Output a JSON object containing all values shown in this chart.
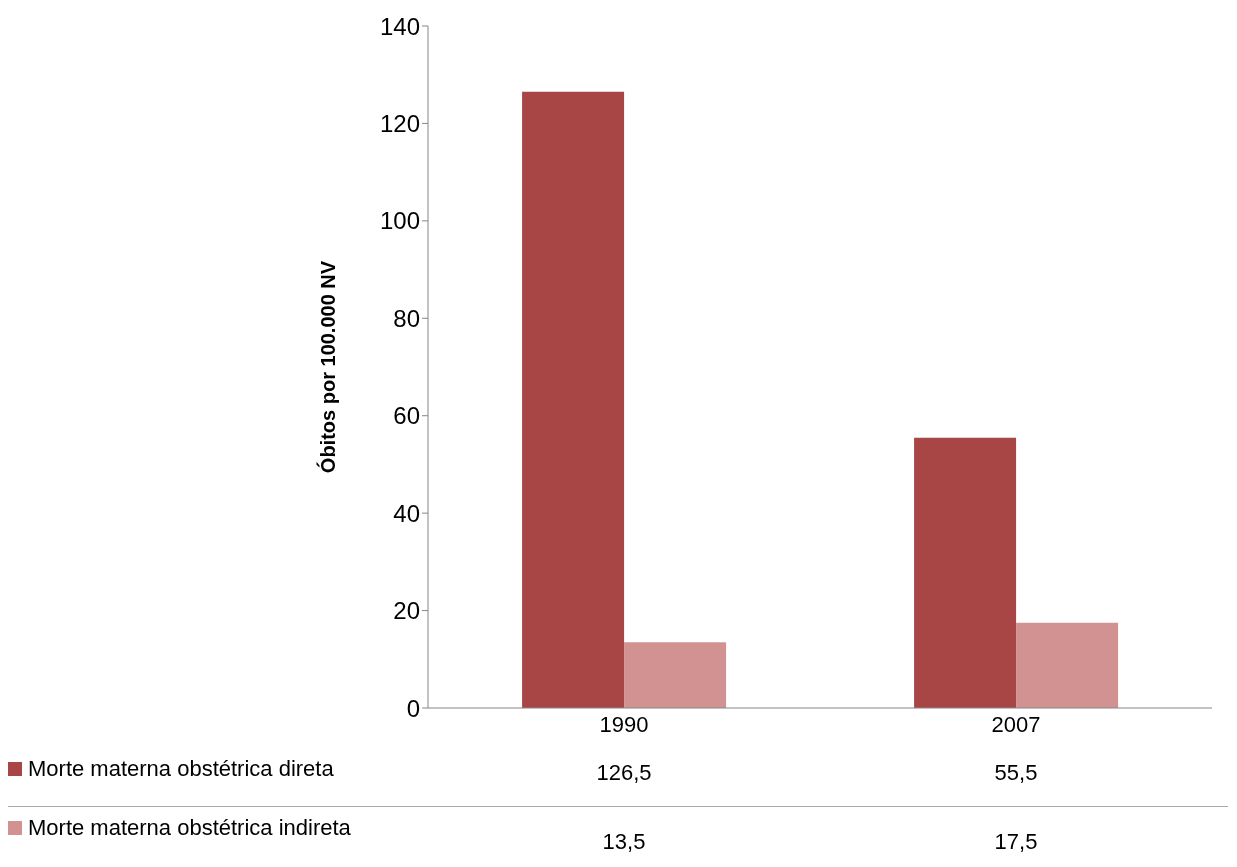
{
  "chart_data": {
    "type": "bar",
    "ylabel": "Óbitos por 100.000 NV",
    "categories": [
      "1990",
      "2007"
    ],
    "series": [
      {
        "name": "Morte materna obstétrica direta",
        "color": "#a84646",
        "values": [
          126.5,
          55.5
        ],
        "value_labels": [
          "126,5",
          "55,5"
        ]
      },
      {
        "name": "Morte materna obstétrica indireta",
        "color": "#d39292",
        "values": [
          13.5,
          17.5
        ],
        "value_labels": [
          "13,5",
          "17,5"
        ]
      }
    ],
    "ylim": [
      0,
      140
    ],
    "yticks": [
      0,
      20,
      40,
      60,
      80,
      100,
      120,
      140
    ],
    "legend": "bottom"
  }
}
